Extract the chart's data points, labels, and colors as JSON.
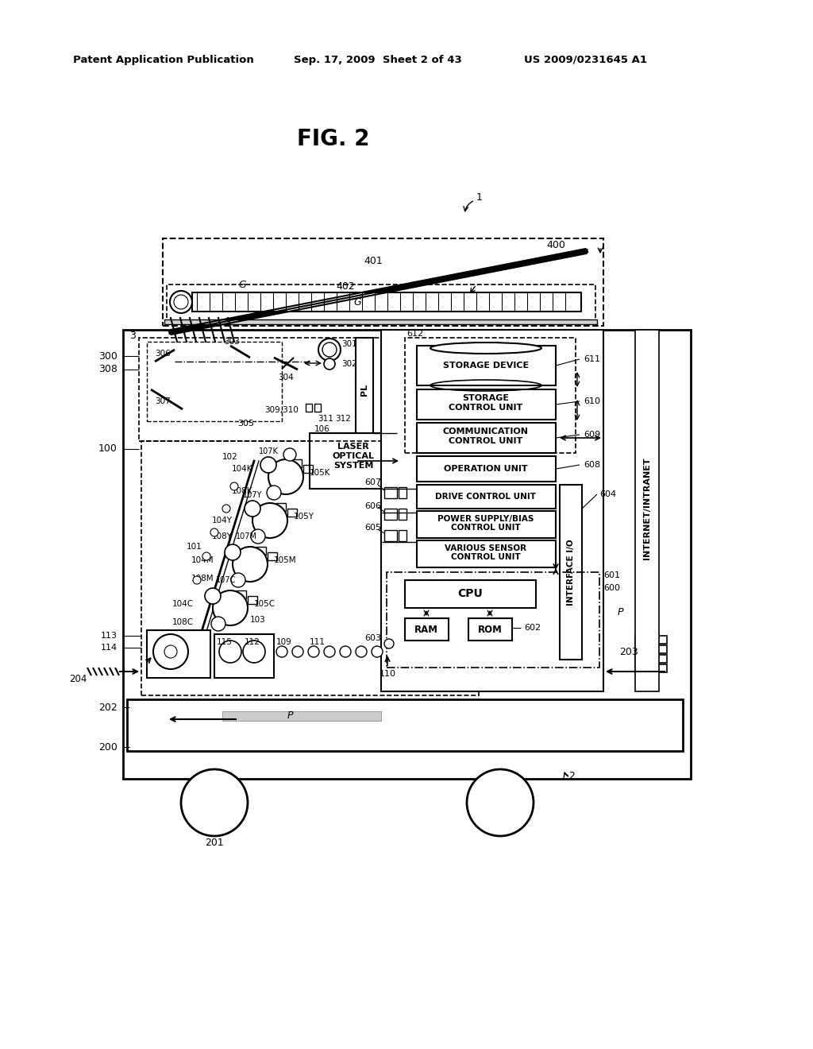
{
  "bg_color": "#ffffff",
  "header_left": "Patent Application Publication",
  "header_mid": "Sep. 17, 2009  Sheet 2 of 43",
  "header_right": "US 2009/0231645 A1",
  "fig_label": "FIG. 2"
}
